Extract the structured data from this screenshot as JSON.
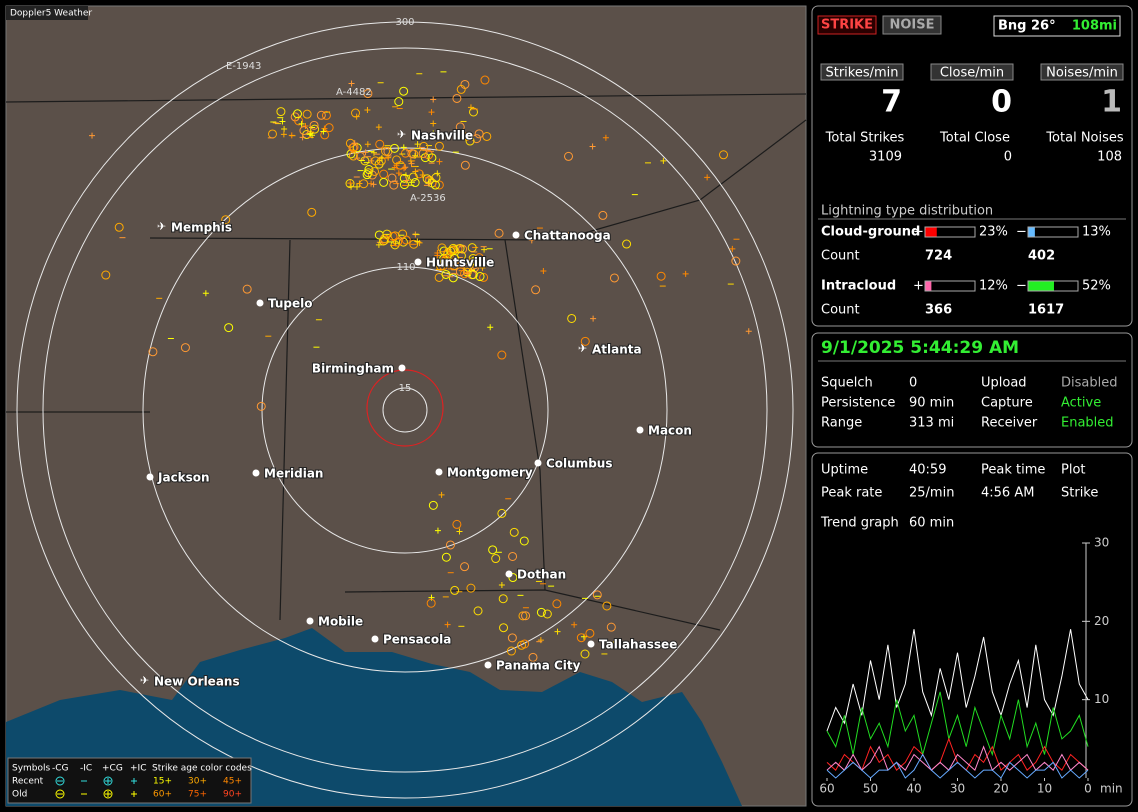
{
  "map": {
    "title": "Doppler5 Weather",
    "ring_labels": [
      "300",
      "110",
      "15"
    ],
    "station_tags": [
      "E-1943",
      "A-4482",
      "A-2536"
    ],
    "cities": [
      "Nashville",
      "Memphis",
      "Chattanooga",
      "Huntsville",
      "Tupelo",
      "Atlanta",
      "Birmingham",
      "Macon",
      "Jackson",
      "Meridian",
      "Montgomery",
      "Columbus",
      "Dothan",
      "Mobile",
      "Pensacola",
      "Tallahassee",
      "Panama City",
      "New Orleans"
    ],
    "legend": {
      "header": [
        "Symbols",
        "-CG",
        "-IC",
        "+CG",
        "+IC",
        "Strike age color codes"
      ],
      "rows": [
        {
          "label": "Recent",
          "ages": [
            {
              "text": "15+",
              "color": "#ffff00"
            },
            {
              "text": "30+",
              "color": "#ffaa00"
            },
            {
              "text": "45+",
              "color": "#ff8800"
            }
          ]
        },
        {
          "label": "Old",
          "ages": [
            {
              "text": "60+",
              "color": "#ff9900"
            },
            {
              "text": "75+",
              "color": "#ff6600"
            },
            {
              "text": "90+",
              "color": "#ff4422"
            }
          ]
        }
      ]
    }
  },
  "panel": {
    "buttons": [
      "STRIKE",
      "NOISE"
    ],
    "bearing": "Bng 26°",
    "distance": "108mi",
    "rates": [
      {
        "label": "Strikes/min",
        "value": "7"
      },
      {
        "label": "Close/min",
        "value": "0"
      },
      {
        "label": "Noises/min",
        "value": "1"
      }
    ],
    "totals": [
      {
        "label": "Total Strikes",
        "value": "3109"
      },
      {
        "label": "Total Close",
        "value": "0"
      },
      {
        "label": "Total Noises",
        "value": "108"
      }
    ],
    "distribution": {
      "title": "Lightning type distribution",
      "count_label": "Count",
      "rows": [
        {
          "name": "Cloud-ground",
          "parts": [
            {
              "sign": "+",
              "value": 23,
              "label": "23%",
              "color": "#ff0000",
              "count": "724"
            },
            {
              "sign": "−",
              "value": 13,
              "label": "13%",
              "color": "#66bbff",
              "count": "402"
            }
          ]
        },
        {
          "name": "Intracloud",
          "parts": [
            {
              "sign": "+",
              "value": 12,
              "label": "12%",
              "color": "#ff66aa",
              "count": "366"
            },
            {
              "sign": "−",
              "value": 52,
              "label": "52%",
              "color": "#22ee22",
              "count": "1617"
            }
          ]
        }
      ]
    }
  },
  "status": {
    "datetime": "9/1/2025 5:44:29 AM",
    "settings": [
      {
        "cells": [
          "Squelch",
          "0",
          "Upload",
          "Disabled"
        ],
        "state_color": "#aaaaaa"
      },
      {
        "cells": [
          "Persistence",
          "90 min",
          "Capture",
          "Active"
        ],
        "state_color": "#33ee33"
      },
      {
        "cells": [
          "Range",
          "313 mi",
          "Receiver",
          "Enabled"
        ],
        "state_color": "#33ee33"
      }
    ]
  },
  "trend": {
    "rows": [
      [
        "Uptime",
        "40:59",
        "Peak time",
        "Plot"
      ],
      [
        "Peak rate",
        "25/min",
        "4:56 AM",
        "Strike"
      ]
    ],
    "graph_label": "Trend graph",
    "graph_span": "60 min"
  },
  "chart_data": {
    "type": "line",
    "x_label": "min",
    "x": [
      60,
      58,
      56,
      54,
      52,
      50,
      48,
      46,
      44,
      42,
      40,
      38,
      36,
      34,
      32,
      30,
      28,
      26,
      24,
      22,
      20,
      18,
      16,
      14,
      12,
      10,
      8,
      6,
      4,
      2,
      0
    ],
    "series": [
      {
        "color": "#ffffff",
        "values": [
          6,
          9,
          7,
          12,
          8,
          15,
          10,
          17,
          9,
          12,
          19,
          11,
          8,
          14,
          10,
          16,
          9,
          13,
          18,
          11,
          8,
          12,
          15,
          9,
          17,
          10,
          8,
          13,
          19,
          12,
          10
        ]
      },
      {
        "color": "#22dd22",
        "values": [
          6,
          4,
          8,
          3,
          9,
          5,
          7,
          4,
          10,
          6,
          8,
          3,
          7,
          11,
          5,
          8,
          4,
          9,
          6,
          3,
          8,
          5,
          10,
          4,
          7,
          3,
          9,
          5,
          6,
          8,
          4
        ]
      },
      {
        "color": "#ff2222",
        "values": [
          2,
          1,
          3,
          2,
          1,
          4,
          2,
          3,
          1,
          2,
          4,
          3,
          1,
          2,
          5,
          2,
          1,
          3,
          2,
          4,
          1,
          2,
          3,
          1,
          2,
          4,
          2,
          1,
          3,
          2,
          1
        ]
      },
      {
        "color": "#ff88cc",
        "values": [
          1,
          2,
          1,
          3,
          1,
          2,
          4,
          1,
          2,
          1,
          3,
          2,
          1,
          2,
          1,
          3,
          2,
          1,
          4,
          1,
          2,
          1,
          2,
          3,
          1,
          2,
          1,
          3,
          1,
          2,
          1
        ]
      },
      {
        "color": "#66aaff",
        "values": [
          1,
          0,
          1,
          2,
          1,
          0,
          1,
          1,
          2,
          0,
          1,
          3,
          1,
          0,
          1,
          2,
          1,
          0,
          1,
          1,
          0,
          2,
          1,
          0,
          1,
          1,
          2,
          0,
          1,
          0,
          1
        ]
      }
    ],
    "xlim": [
      60,
      0
    ],
    "ylim": [
      0,
      30
    ],
    "xticks": [
      60,
      50,
      40,
      30,
      20,
      10,
      0
    ],
    "yticks": [
      10,
      20,
      30
    ]
  }
}
